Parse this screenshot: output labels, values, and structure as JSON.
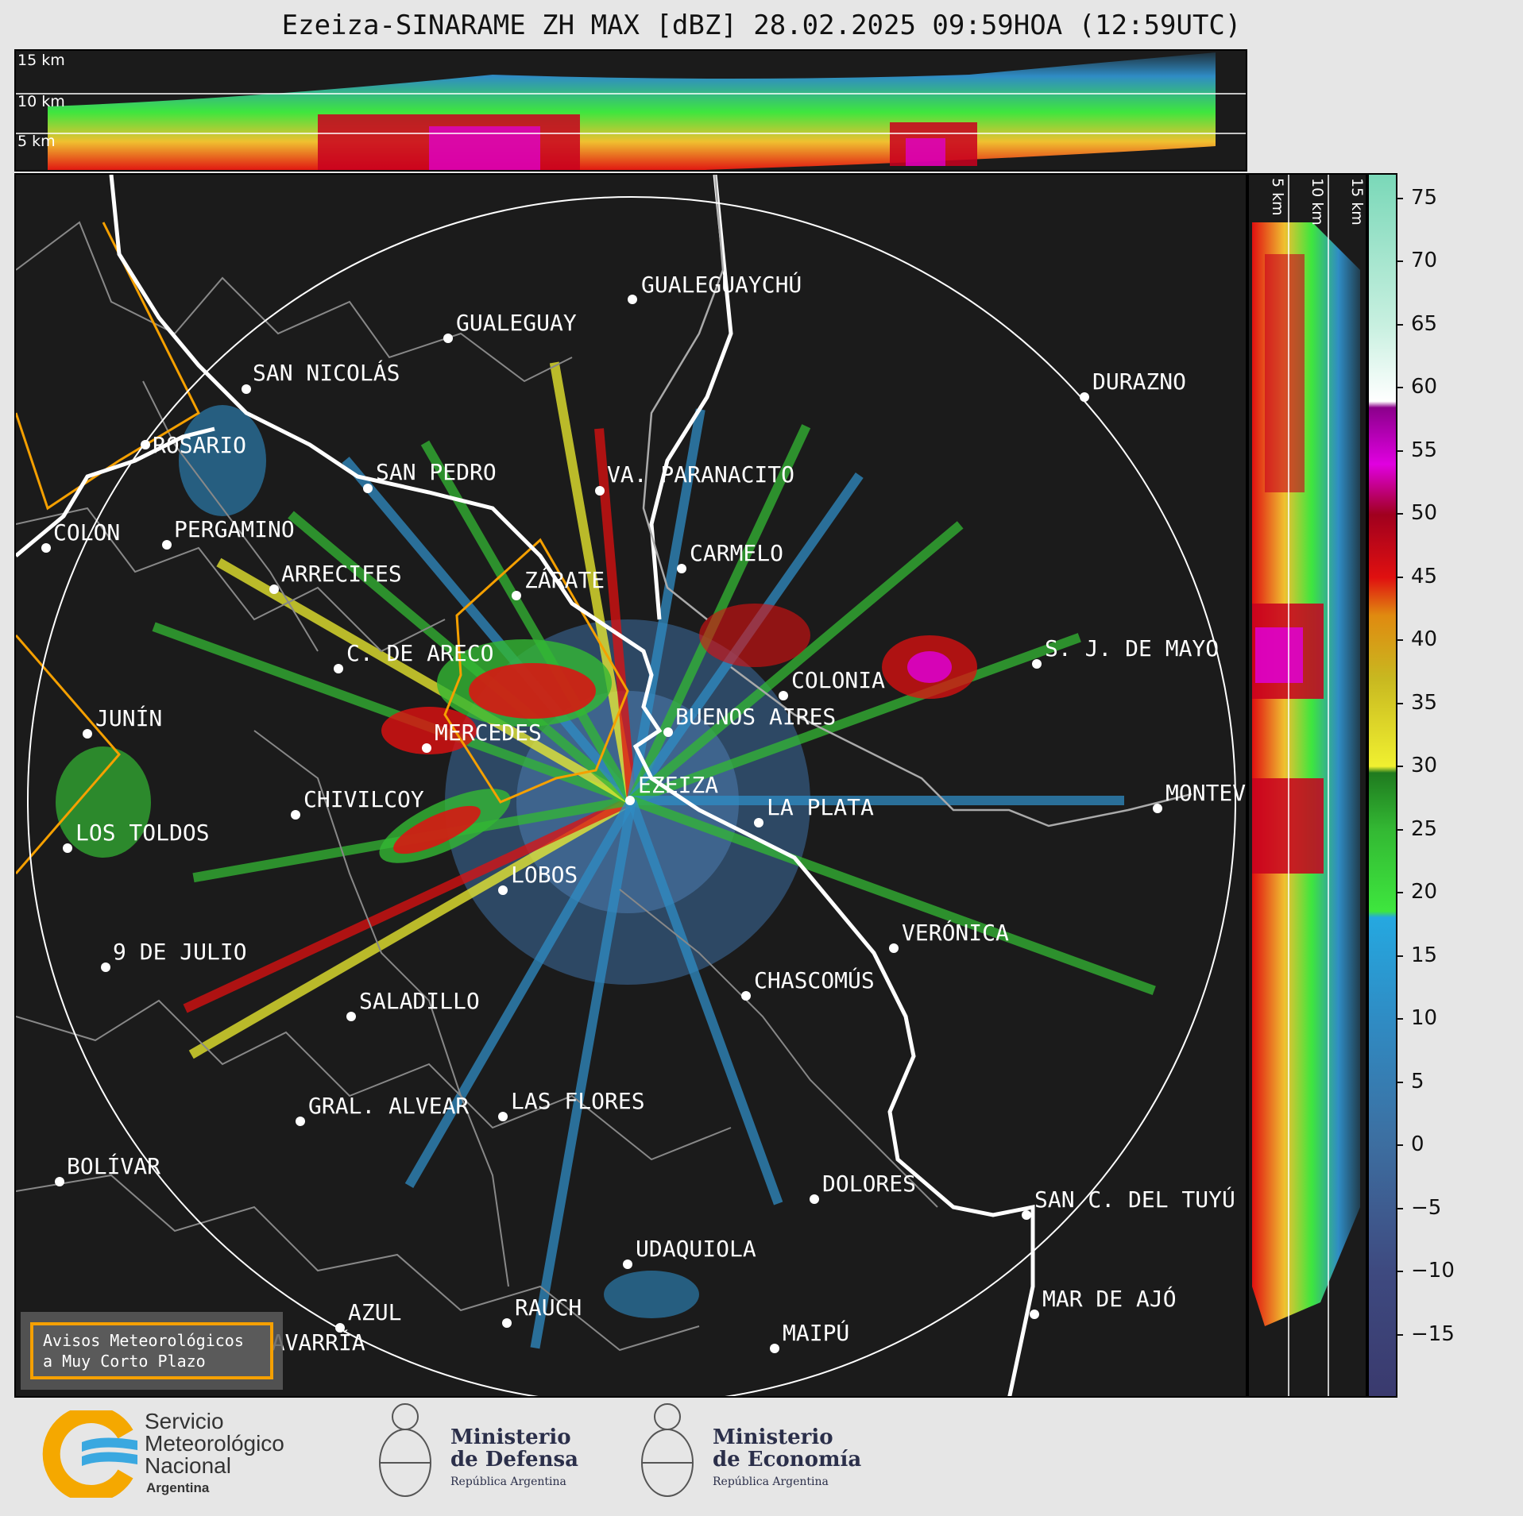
{
  "title": "Ezeiza-SINARAME ZH MAX [dBZ] 28.02.2025 09:59HOA (12:59UTC)",
  "height_labels": [
    "15 km",
    "10 km",
    "5 km"
  ],
  "cities": [
    {
      "name": "ROSARIO"
    },
    {
      "name": "GUALEGUAYCHÚ"
    },
    {
      "name": "GUALEGUAY"
    },
    {
      "name": "SAN NICOLÁS"
    },
    {
      "name": "DURAZNO"
    },
    {
      "name": "SAN PEDRO"
    },
    {
      "name": "VA. PARANACITO"
    },
    {
      "name": "COLON"
    },
    {
      "name": "PERGAMINO"
    },
    {
      "name": "CARMELO"
    },
    {
      "name": "ARRECIFES"
    },
    {
      "name": "ZÁRATE"
    },
    {
      "name": "C. DE ARECO"
    },
    {
      "name": "S. J. DE MAYO"
    },
    {
      "name": "COLONIA"
    },
    {
      "name": "JUNÍN"
    },
    {
      "name": "BUENOS AIRES"
    },
    {
      "name": "MERCEDES"
    },
    {
      "name": "EZEIZA"
    },
    {
      "name": "MONTEVIDEO"
    },
    {
      "name": "CHIVILCOY"
    },
    {
      "name": "LA PLATA"
    },
    {
      "name": "LOS TOLDOS"
    },
    {
      "name": "LOBOS"
    },
    {
      "name": "VERÓNICA"
    },
    {
      "name": "9 DE JULIO"
    },
    {
      "name": "CHASCOMÚS"
    },
    {
      "name": "SALADILLO"
    },
    {
      "name": "GRAL. ALVEAR"
    },
    {
      "name": "LAS FLORES"
    },
    {
      "name": "BOLÍVAR"
    },
    {
      "name": "DOLORES"
    },
    {
      "name": "SAN C. DEL TUYÚ"
    },
    {
      "name": "UDAQUIOLA"
    },
    {
      "name": "MAR DE AJÓ"
    },
    {
      "name": "RAUCH"
    },
    {
      "name": "AZUL"
    },
    {
      "name": "MAIPÚ"
    },
    {
      "name": "OLAVARRÍA"
    }
  ],
  "colorbar": {
    "unit": "dBZ",
    "ticks": [
      "75",
      "70",
      "65",
      "60",
      "55",
      "50",
      "45",
      "40",
      "35",
      "30",
      "25",
      "20",
      "15",
      "10",
      "5",
      "0",
      "−5",
      "−10",
      "−15"
    ],
    "range": [
      -20,
      77
    ],
    "stops": [
      {
        "v": -20,
        "c": "#3a3a6e"
      },
      {
        "v": -10,
        "c": "#3e4a80"
      },
      {
        "v": 0,
        "c": "#3d6ea0"
      },
      {
        "v": 10,
        "c": "#2f8cc4"
      },
      {
        "v": 18,
        "c": "#25a8e0"
      },
      {
        "v": 18.5,
        "c": "#3ee63e"
      },
      {
        "v": 25,
        "c": "#33b833"
      },
      {
        "v": 29.5,
        "c": "#1f7a1f"
      },
      {
        "v": 30,
        "c": "#f0f030"
      },
      {
        "v": 37,
        "c": "#c8b820"
      },
      {
        "v": 42,
        "c": "#e08a10"
      },
      {
        "v": 45,
        "c": "#e01010"
      },
      {
        "v": 50,
        "c": "#a0001e"
      },
      {
        "v": 54,
        "c": "#e000e0"
      },
      {
        "v": 58.5,
        "c": "#8b008b"
      },
      {
        "v": 59,
        "c": "#ffffff"
      },
      {
        "v": 65,
        "c": "#c8f0e0"
      },
      {
        "v": 77,
        "c": "#7ad8b8"
      }
    ]
  },
  "avisos_box": [
    "Avisos Meteorológicos",
    "a Muy Corto Plazo"
  ],
  "logos": {
    "smn": [
      "Servicio",
      "Meteorológico",
      "Nacional",
      "Argentina"
    ],
    "defensa": [
      "Ministerio",
      "de Defensa",
      "República Argentina"
    ],
    "economia": [
      "Ministerio",
      "de Economía",
      "República Argentina"
    ]
  }
}
